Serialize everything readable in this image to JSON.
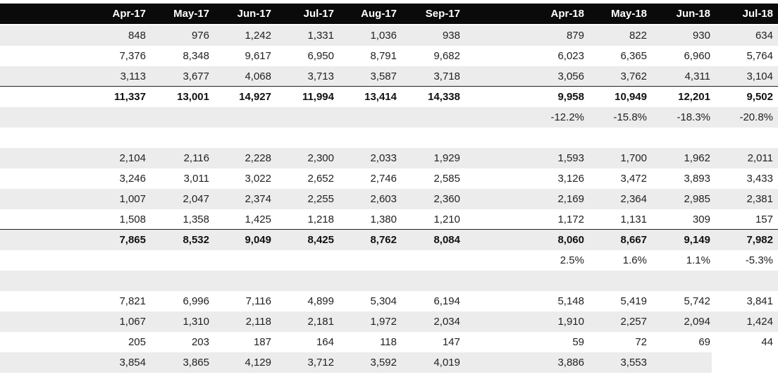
{
  "header": [
    "Apr-17",
    "May-17",
    "Jun-17",
    "Jul-17",
    "Aug-17",
    "Sep-17",
    "Apr-18",
    "May-18",
    "Jun-18",
    "Jul-18"
  ],
  "rows": [
    {
      "kind": "data",
      "shaded": true,
      "values": [
        "848",
        "976",
        "1,242",
        "1,331",
        "1,036",
        "938",
        "879",
        "822",
        "930",
        "634"
      ]
    },
    {
      "kind": "data",
      "shaded": false,
      "values": [
        "7,376",
        "8,348",
        "9,617",
        "6,950",
        "8,791",
        "9,682",
        "6,023",
        "6,365",
        "6,960",
        "5,764"
      ]
    },
    {
      "kind": "data",
      "shaded": true,
      "values": [
        "3,113",
        "3,677",
        "4,068",
        "3,713",
        "3,587",
        "3,718",
        "3,056",
        "3,762",
        "4,311",
        "3,104"
      ]
    },
    {
      "kind": "total",
      "shaded": false,
      "values": [
        "11,337",
        "13,001",
        "14,927",
        "11,994",
        "13,414",
        "14,338",
        "9,958",
        "10,949",
        "12,201",
        "9,502"
      ]
    },
    {
      "kind": "pct",
      "shaded": true,
      "values": [
        "",
        "",
        "",
        "",
        "",
        "",
        "-12.2%",
        "-15.8%",
        "-18.3%",
        "-20.8%"
      ]
    },
    {
      "kind": "spacer",
      "shaded": false,
      "values": [
        "",
        "",
        "",
        "",
        "",
        "",
        "",
        "",
        "",
        ""
      ]
    },
    {
      "kind": "data",
      "shaded": true,
      "values": [
        "2,104",
        "2,116",
        "2,228",
        "2,300",
        "2,033",
        "1,929",
        "1,593",
        "1,700",
        "1,962",
        "2,011"
      ]
    },
    {
      "kind": "data",
      "shaded": false,
      "values": [
        "3,246",
        "3,011",
        "3,022",
        "2,652",
        "2,746",
        "2,585",
        "3,126",
        "3,472",
        "3,893",
        "3,433"
      ]
    },
    {
      "kind": "data",
      "shaded": true,
      "values": [
        "1,007",
        "2,047",
        "2,374",
        "2,255",
        "2,603",
        "2,360",
        "2,169",
        "2,364",
        "2,985",
        "2,381"
      ]
    },
    {
      "kind": "data",
      "shaded": false,
      "values": [
        "1,508",
        "1,358",
        "1,425",
        "1,218",
        "1,380",
        "1,210",
        "1,172",
        "1,131",
        "309",
        "157"
      ]
    },
    {
      "kind": "total",
      "shaded": true,
      "values": [
        "7,865",
        "8,532",
        "9,049",
        "8,425",
        "8,762",
        "8,084",
        "8,060",
        "8,667",
        "9,149",
        "7,982"
      ]
    },
    {
      "kind": "pct",
      "shaded": false,
      "values": [
        "",
        "",
        "",
        "",
        "",
        "",
        "2.5%",
        "1.6%",
        "1.1%",
        "-5.3%"
      ]
    },
    {
      "kind": "spacer",
      "shaded": true,
      "values": [
        "",
        "",
        "",
        "",
        "",
        "",
        "",
        "",
        "",
        ""
      ]
    },
    {
      "kind": "data",
      "shaded": false,
      "values": [
        "7,821",
        "6,996",
        "7,116",
        "4,899",
        "5,304",
        "6,194",
        "5,148",
        "5,419",
        "5,742",
        "3,841"
      ]
    },
    {
      "kind": "data",
      "shaded": true,
      "values": [
        "1,067",
        "1,310",
        "2,118",
        "2,181",
        "1,972",
        "2,034",
        "1,910",
        "2,257",
        "2,094",
        "1,424"
      ]
    },
    {
      "kind": "data",
      "shaded": false,
      "values": [
        "205",
        "203",
        "187",
        "164",
        "118",
        "147",
        "59",
        "72",
        "69",
        "44"
      ]
    },
    {
      "kind": "data",
      "shaded": true,
      "short": true,
      "values": [
        "3,854",
        "3,865",
        "4,129",
        "3,712",
        "3,592",
        "4,019",
        "3,886",
        "3,553",
        "",
        ""
      ]
    }
  ]
}
